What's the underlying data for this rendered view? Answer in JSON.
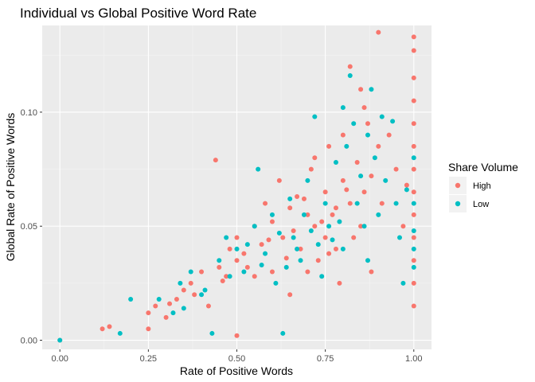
{
  "chart_data": {
    "type": "scatter",
    "title": "Individual vs Global Positive Word Rate",
    "xlabel": "Rate of Positive Words",
    "ylabel": "Global Rate of Positive Words",
    "xlim": [
      -0.05,
      1.05
    ],
    "ylim": [
      -0.004,
      0.138
    ],
    "x_ticks": [
      0.0,
      0.25,
      0.5,
      0.75,
      1.0
    ],
    "x_tick_labels": [
      "0.00",
      "0.25",
      "0.50",
      "0.75",
      "1.00"
    ],
    "y_ticks": [
      0.0,
      0.05,
      0.1
    ],
    "y_tick_labels": [
      "0.00",
      "0.05",
      "0.10"
    ],
    "grid": true,
    "legend": {
      "title": "Share Volume",
      "position": "right"
    },
    "series": [
      {
        "name": "High",
        "color": "#F8766D",
        "points": [
          [
            0.0,
            0.0
          ],
          [
            0.12,
            0.005
          ],
          [
            0.14,
            0.006
          ],
          [
            0.25,
            0.012
          ],
          [
            0.25,
            0.005
          ],
          [
            0.27,
            0.015
          ],
          [
            0.3,
            0.01
          ],
          [
            0.33,
            0.018
          ],
          [
            0.35,
            0.022
          ],
          [
            0.37,
            0.025
          ],
          [
            0.4,
            0.03
          ],
          [
            0.42,
            0.015
          ],
          [
            0.44,
            0.079
          ],
          [
            0.45,
            0.032
          ],
          [
            0.47,
            0.028
          ],
          [
            0.48,
            0.04
          ],
          [
            0.5,
            0.035
          ],
          [
            0.5,
            0.045
          ],
          [
            0.5,
            0.002
          ],
          [
            0.52,
            0.038
          ],
          [
            0.55,
            0.05
          ],
          [
            0.55,
            0.028
          ],
          [
            0.57,
            0.042
          ],
          [
            0.58,
            0.06
          ],
          [
            0.6,
            0.052
          ],
          [
            0.6,
            0.03
          ],
          [
            0.62,
            0.07
          ],
          [
            0.63,
            0.045
          ],
          [
            0.65,
            0.058
          ],
          [
            0.65,
            0.02
          ],
          [
            0.67,
            0.063
          ],
          [
            0.68,
            0.04
          ],
          [
            0.7,
            0.055
          ],
          [
            0.7,
            0.03
          ],
          [
            0.71,
            0.075
          ],
          [
            0.72,
            0.05
          ],
          [
            0.73,
            0.035
          ],
          [
            0.75,
            0.065
          ],
          [
            0.75,
            0.045
          ],
          [
            0.76,
            0.085
          ],
          [
            0.77,
            0.055
          ],
          [
            0.78,
            0.04
          ],
          [
            0.79,
            0.025
          ],
          [
            0.8,
            0.07
          ],
          [
            0.8,
            0.09
          ],
          [
            0.82,
            0.06
          ],
          [
            0.82,
            0.12
          ],
          [
            0.83,
            0.045
          ],
          [
            0.84,
            0.078
          ],
          [
            0.85,
            0.11
          ],
          [
            0.85,
            0.05
          ],
          [
            0.86,
            0.065
          ],
          [
            0.87,
            0.095
          ],
          [
            0.88,
            0.072
          ],
          [
            0.88,
            0.03
          ],
          [
            0.9,
            0.135
          ],
          [
            0.9,
            0.085
          ],
          [
            0.91,
            0.06
          ],
          [
            0.93,
            0.09
          ],
          [
            0.95,
            0.075
          ],
          [
            0.97,
            0.05
          ],
          [
            0.98,
            0.068
          ],
          [
            1.0,
            0.133
          ],
          [
            1.0,
            0.127
          ],
          [
            1.0,
            0.115
          ],
          [
            1.0,
            0.105
          ],
          [
            1.0,
            0.095
          ],
          [
            1.0,
            0.085
          ],
          [
            1.0,
            0.075
          ],
          [
            1.0,
            0.065
          ],
          [
            1.0,
            0.055
          ],
          [
            1.0,
            0.045
          ],
          [
            1.0,
            0.035
          ],
          [
            1.0,
            0.025
          ],
          [
            1.0,
            0.015
          ],
          [
            0.66,
            0.048
          ],
          [
            0.69,
            0.062
          ],
          [
            0.74,
            0.052
          ],
          [
            0.78,
            0.058
          ],
          [
            0.81,
            0.066
          ],
          [
            0.76,
            0.038
          ],
          [
            0.64,
            0.036
          ],
          [
            0.59,
            0.044
          ],
          [
            0.53,
            0.032
          ],
          [
            0.46,
            0.026
          ],
          [
            0.38,
            0.02
          ],
          [
            0.31,
            0.016
          ],
          [
            0.72,
            0.08
          ],
          [
            0.86,
            0.102
          ]
        ]
      },
      {
        "name": "Low",
        "color": "#00BFC4",
        "points": [
          [
            0.0,
            0.0
          ],
          [
            0.17,
            0.003
          ],
          [
            0.2,
            0.018
          ],
          [
            0.28,
            0.018
          ],
          [
            0.32,
            0.012
          ],
          [
            0.34,
            0.025
          ],
          [
            0.37,
            0.03
          ],
          [
            0.4,
            0.02
          ],
          [
            0.43,
            0.003
          ],
          [
            0.45,
            0.035
          ],
          [
            0.47,
            0.045
          ],
          [
            0.5,
            0.04
          ],
          [
            0.52,
            0.03
          ],
          [
            0.55,
            0.05
          ],
          [
            0.56,
            0.075
          ],
          [
            0.58,
            0.038
          ],
          [
            0.6,
            0.055
          ],
          [
            0.61,
            0.025
          ],
          [
            0.63,
            0.003
          ],
          [
            0.65,
            0.062
          ],
          [
            0.66,
            0.045
          ],
          [
            0.68,
            0.035
          ],
          [
            0.69,
            0.055
          ],
          [
            0.7,
            0.07
          ],
          [
            0.72,
            0.098
          ],
          [
            0.73,
            0.042
          ],
          [
            0.74,
            0.028
          ],
          [
            0.75,
            0.06
          ],
          [
            0.76,
            0.05
          ],
          [
            0.78,
            0.078
          ],
          [
            0.8,
            0.102
          ],
          [
            0.8,
            0.04
          ],
          [
            0.81,
            0.085
          ],
          [
            0.82,
            0.116
          ],
          [
            0.83,
            0.095
          ],
          [
            0.84,
            0.06
          ],
          [
            0.85,
            0.072
          ],
          [
            0.86,
            0.05
          ],
          [
            0.87,
            0.09
          ],
          [
            0.87,
            0.035
          ],
          [
            0.88,
            0.11
          ],
          [
            0.89,
            0.08
          ],
          [
            0.9,
            0.055
          ],
          [
            0.91,
            0.098
          ],
          [
            0.92,
            0.07
          ],
          [
            0.94,
            0.096
          ],
          [
            0.95,
            0.06
          ],
          [
            0.96,
            0.045
          ],
          [
            0.97,
            0.025
          ],
          [
            0.98,
            0.066
          ],
          [
            1.0,
            0.08
          ],
          [
            1.0,
            0.06
          ],
          [
            1.0,
            0.048
          ],
          [
            1.0,
            0.04
          ],
          [
            1.0,
            0.032
          ],
          [
            0.67,
            0.04
          ],
          [
            0.71,
            0.048
          ],
          [
            0.77,
            0.044
          ],
          [
            0.79,
            0.052
          ],
          [
            0.64,
            0.032
          ],
          [
            0.62,
            0.047
          ],
          [
            0.57,
            0.033
          ],
          [
            0.53,
            0.042
          ],
          [
            0.48,
            0.028
          ],
          [
            0.41,
            0.022
          ],
          [
            0.35,
            0.014
          ]
        ]
      }
    ]
  }
}
